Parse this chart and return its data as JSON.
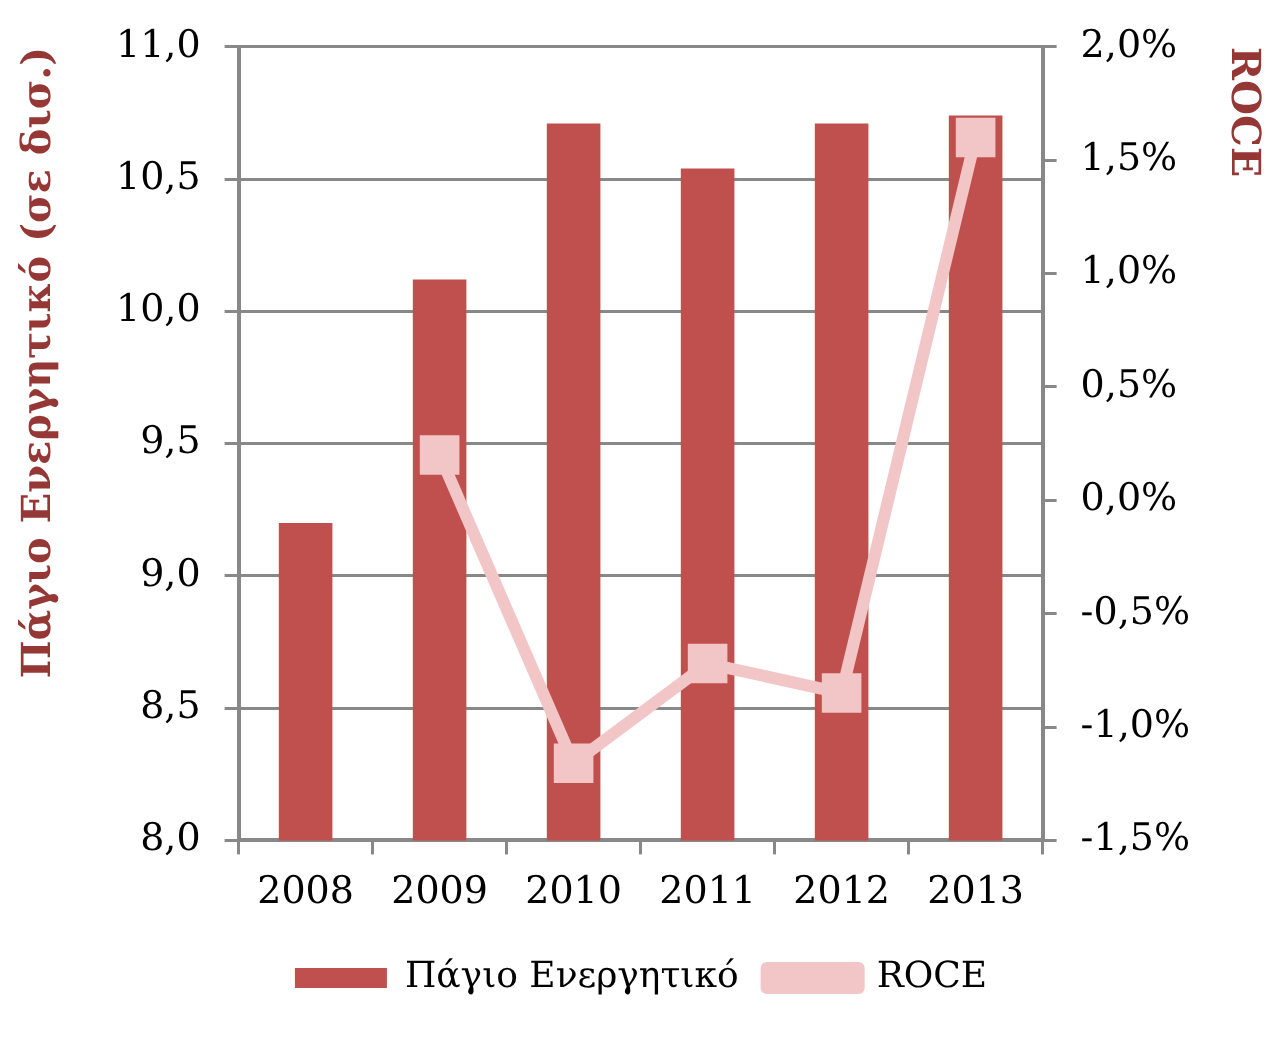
{
  "chart_data": {
    "type": "bar",
    "categories": [
      "2008",
      "2009",
      "2010",
      "2011",
      "2012",
      "2013"
    ],
    "series": [
      {
        "name": "Πάγιο Ενεργητικό",
        "color": "#c0504d",
        "values": [
          9.2,
          10.12,
          10.71,
          10.54,
          10.71,
          10.74
        ]
      },
      {
        "name": "ROCE",
        "type": "line",
        "axis": "y2",
        "color": "#f2c6c6",
        "marker": "square",
        "line_style": "solid",
        "values": [
          null,
          0.2,
          -1.16,
          -0.72,
          -0.85,
          1.6
        ]
      }
    ],
    "ylabel": "Πάγιο Ενεργητικό (σε δισ.)",
    "y2label": "ROCE",
    "ylim": [
      8,
      11
    ],
    "yticks": [
      {
        "value": 8,
        "label": "8,0"
      },
      {
        "value": 8.5,
        "label": "8,5"
      },
      {
        "value": 9,
        "label": "9,0"
      },
      {
        "value": 9.5,
        "label": "9,5"
      },
      {
        "value": 10,
        "label": "10,0"
      },
      {
        "value": 10.5,
        "label": "10,5"
      },
      {
        "value": 11,
        "label": "11,0"
      }
    ],
    "y2lim": [
      -1.5,
      2
    ],
    "y2ticks": [
      {
        "value": -1.5,
        "label": "-1,5%"
      },
      {
        "value": -1,
        "label": "-1,0%"
      },
      {
        "value": -0.5,
        "label": "-0,5%"
      },
      {
        "value": 0,
        "label": "0,0%"
      },
      {
        "value": 0.5,
        "label": "0,5%"
      },
      {
        "value": 1,
        "label": "1,0%"
      },
      {
        "value": 1.5,
        "label": "1,5%"
      },
      {
        "value": 2,
        "label": "2,0%"
      }
    ],
    "grid": "y",
    "legend": "bottom"
  }
}
